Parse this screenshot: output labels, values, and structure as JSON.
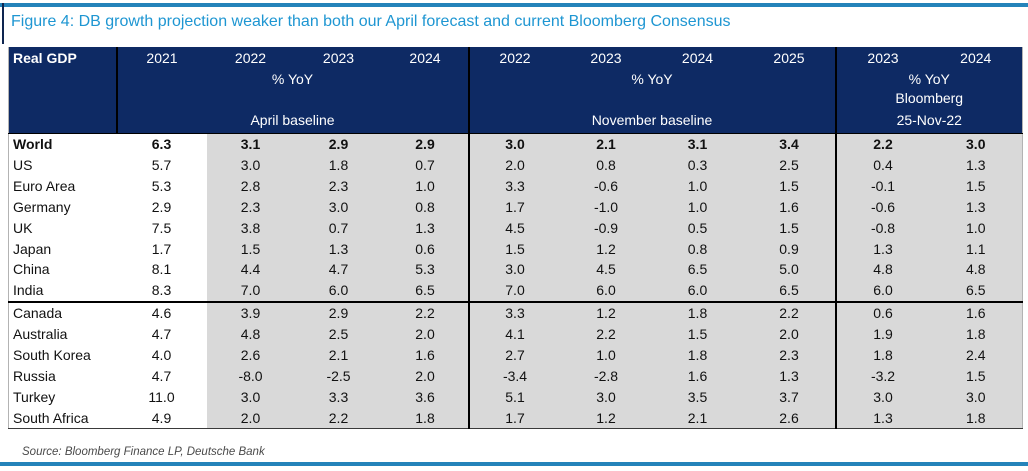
{
  "figure": {
    "title": "Figure 4: DB growth projection weaker than both our April forecast and current Bloomberg Consensus",
    "source": "Source: Bloomberg Finance LP, Deutsche Bank"
  },
  "colors": {
    "header_navy": "#0e2a64",
    "title_blue": "#1e96d2",
    "rule_blue": "#2483ba",
    "band_gray": "#d9d9d9"
  },
  "table": {
    "corner_label": "Real GDP",
    "sections": [
      {
        "name": "april_baseline",
        "years": [
          "2021",
          "2022",
          "2023",
          "2024"
        ],
        "unit": "% YoY",
        "sub": "",
        "label": "April baseline"
      },
      {
        "name": "november_baseline",
        "years": [
          "2022",
          "2023",
          "2024",
          "2025"
        ],
        "unit": "% YoY",
        "sub": "",
        "label": "November baseline"
      },
      {
        "name": "bloomberg",
        "years": [
          "2023",
          "2024"
        ],
        "unit": "% YoY",
        "sub": "Bloomberg",
        "label": "25-Nov-22"
      }
    ],
    "rows": [
      {
        "country": "World",
        "bold": true,
        "separator_above": false,
        "april": [
          "6.3",
          "3.1",
          "2.9",
          "2.9"
        ],
        "november": [
          "3.0",
          "2.1",
          "3.1",
          "3.4"
        ],
        "bloomberg": [
          "2.2",
          "3.0"
        ]
      },
      {
        "country": "US",
        "bold": false,
        "separator_above": false,
        "april": [
          "5.7",
          "3.0",
          "1.8",
          "0.7"
        ],
        "november": [
          "2.0",
          "0.8",
          "0.3",
          "2.5"
        ],
        "bloomberg": [
          "0.4",
          "1.3"
        ]
      },
      {
        "country": "Euro Area",
        "bold": false,
        "separator_above": false,
        "april": [
          "5.3",
          "2.8",
          "2.3",
          "1.0"
        ],
        "november": [
          "3.3",
          "-0.6",
          "1.0",
          "1.5"
        ],
        "bloomberg": [
          "-0.1",
          "1.5"
        ]
      },
      {
        "country": "Germany",
        "bold": false,
        "separator_above": false,
        "april": [
          "2.9",
          "2.3",
          "3.0",
          "0.8"
        ],
        "november": [
          "1.7",
          "-1.0",
          "1.0",
          "1.6"
        ],
        "bloomberg": [
          "-0.6",
          "1.3"
        ]
      },
      {
        "country": "UK",
        "bold": false,
        "separator_above": false,
        "april": [
          "7.5",
          "3.8",
          "0.7",
          "1.3"
        ],
        "november": [
          "4.5",
          "-0.9",
          "0.5",
          "1.5"
        ],
        "bloomberg": [
          "-0.8",
          "1.0"
        ]
      },
      {
        "country": "Japan",
        "bold": false,
        "separator_above": false,
        "april": [
          "1.7",
          "1.5",
          "1.3",
          "0.6"
        ],
        "november": [
          "1.5",
          "1.2",
          "0.8",
          "0.9"
        ],
        "bloomberg": [
          "1.3",
          "1.1"
        ]
      },
      {
        "country": "China",
        "bold": false,
        "separator_above": false,
        "april": [
          "8.1",
          "4.4",
          "4.7",
          "5.3"
        ],
        "november": [
          "3.0",
          "4.5",
          "6.5",
          "5.0"
        ],
        "bloomberg": [
          "4.8",
          "4.8"
        ]
      },
      {
        "country": "India",
        "bold": false,
        "separator_above": false,
        "april": [
          "8.3",
          "7.0",
          "6.0",
          "6.5"
        ],
        "november": [
          "7.0",
          "6.0",
          "6.0",
          "6.5"
        ],
        "bloomberg": [
          "6.0",
          "6.5"
        ]
      },
      {
        "country": "Canada",
        "bold": false,
        "separator_above": true,
        "april": [
          "4.6",
          "3.9",
          "2.9",
          "2.2"
        ],
        "november": [
          "3.3",
          "1.2",
          "1.8",
          "2.2"
        ],
        "bloomberg": [
          "0.6",
          "1.6"
        ]
      },
      {
        "country": "Australia",
        "bold": false,
        "separator_above": false,
        "april": [
          "4.7",
          "4.8",
          "2.5",
          "2.0"
        ],
        "november": [
          "4.1",
          "2.2",
          "1.5",
          "2.0"
        ],
        "bloomberg": [
          "1.9",
          "1.8"
        ]
      },
      {
        "country": "South Korea",
        "bold": false,
        "separator_above": false,
        "april": [
          "4.0",
          "2.6",
          "2.1",
          "1.6"
        ],
        "november": [
          "2.7",
          "1.0",
          "1.8",
          "2.3"
        ],
        "bloomberg": [
          "1.8",
          "2.4"
        ]
      },
      {
        "country": "Russia",
        "bold": false,
        "separator_above": false,
        "april": [
          "4.7",
          "-8.0",
          "-2.5",
          "2.0"
        ],
        "november": [
          "-3.4",
          "-2.8",
          "1.6",
          "1.3"
        ],
        "bloomberg": [
          "-3.2",
          "1.5"
        ]
      },
      {
        "country": "Turkey",
        "bold": false,
        "separator_above": false,
        "april": [
          "11.0",
          "3.0",
          "3.3",
          "3.6"
        ],
        "november": [
          "5.1",
          "3.0",
          "3.5",
          "3.7"
        ],
        "bloomberg": [
          "3.0",
          "3.0"
        ]
      },
      {
        "country": "South Africa",
        "bold": false,
        "separator_above": false,
        "april": [
          "4.9",
          "2.0",
          "2.2",
          "1.8"
        ],
        "november": [
          "1.7",
          "1.2",
          "2.1",
          "2.6"
        ],
        "bloomberg": [
          "1.3",
          "1.8"
        ]
      }
    ]
  }
}
